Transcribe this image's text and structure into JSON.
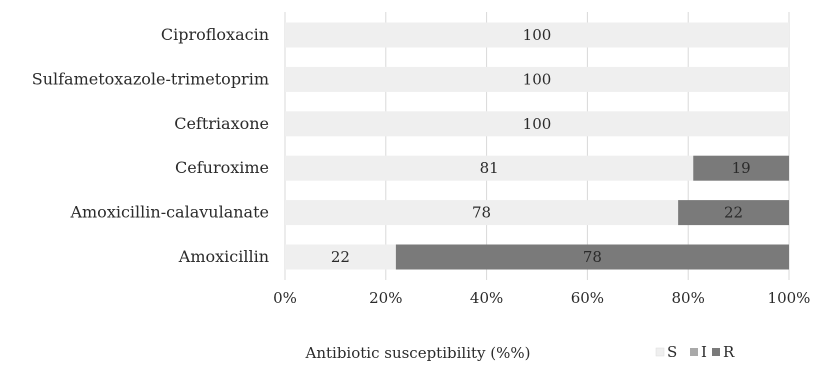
{
  "chart_data": {
    "type": "bar",
    "orientation": "horizontal",
    "stacked": true,
    "categories": [
      "Ciprofloxacin",
      "Sulfametoxazole-trimetoprim",
      "Ceftriaxone",
      "Cefuroxime",
      "Amoxicillin-calavulanate",
      "Amoxicillin"
    ],
    "series": [
      {
        "name": "S",
        "values": [
          100,
          100,
          100,
          81,
          78,
          22
        ],
        "color": "#efefef",
        "labels": [
          "100",
          "100",
          "100",
          "81",
          "78",
          "22"
        ]
      },
      {
        "name": "I",
        "values": [
          0,
          0,
          0,
          0,
          0,
          0
        ],
        "color": "#a9a9a9",
        "labels": [
          "",
          "",
          "",
          "",
          "",
          ""
        ]
      },
      {
        "name": "R",
        "values": [
          0,
          0,
          0,
          19,
          22,
          78
        ],
        "color": "#7a7a7a",
        "labels": [
          "",
          "",
          "",
          "19",
          "22",
          "78"
        ]
      }
    ],
    "xlim": [
      0,
      100
    ],
    "x_ticks": [
      "0%",
      "20%",
      "40%",
      "60%",
      "80%",
      "100%"
    ],
    "xlabel": "Antibiotic susceptibility (%%)",
    "ylabel": "",
    "title": "",
    "grid": true,
    "legend": {
      "position": "bottom-right"
    }
  }
}
